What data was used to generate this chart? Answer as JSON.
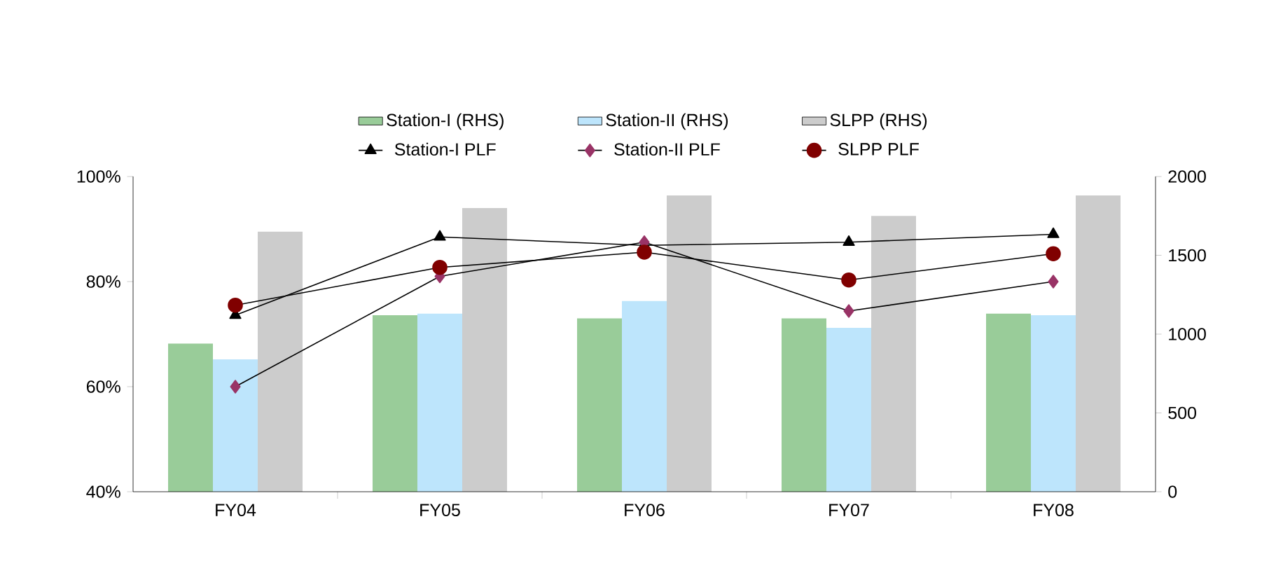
{
  "chart_data": {
    "type": "bar",
    "categories": [
      "FY04",
      "FY05",
      "FY06",
      "FY07",
      "FY08"
    ],
    "series": [
      {
        "name": "Station-I (RHS)",
        "axis": "y2",
        "color": "#99cc99",
        "values": [
          940,
          1120,
          1100,
          1100,
          1130
        ]
      },
      {
        "name": "Station-II (RHS)",
        "axis": "y2",
        "color": "#bde5fc",
        "values": [
          840,
          1130,
          1210,
          1040,
          1120
        ]
      },
      {
        "name": "SLPP (RHS)",
        "axis": "y2",
        "color": "#cccccc",
        "values": [
          1650,
          1800,
          1880,
          1750,
          1880
        ]
      },
      {
        "name": "Station-I PLF",
        "type": "line",
        "color": "#000000",
        "marker": "triangle",
        "values": [
          73.6,
          88.5,
          86.9,
          87.5,
          89
        ]
      },
      {
        "name": "Station-II PLF",
        "type": "line",
        "color": "#993366",
        "marker": "diamond",
        "values": [
          60,
          81,
          87.5,
          74.4,
          80
        ]
      },
      {
        "name": "SLPP PLF",
        "type": "line",
        "color": "#800000",
        "marker": "circle",
        "values": [
          75.5,
          82.7,
          85.6,
          80.3,
          85.3
        ]
      }
    ],
    "ylim": [
      40,
      100
    ],
    "yticks": [
      {
        "value": 40,
        "label": "40%"
      },
      {
        "value": 60,
        "label": "60%"
      },
      {
        "value": 80,
        "label": "80%"
      },
      {
        "value": 100,
        "label": "100%"
      }
    ],
    "y2lim": [
      0,
      2000
    ],
    "y2ticks": [
      0,
      500,
      1000,
      1500,
      2000
    ],
    "legend": "top",
    "line_style": "solid"
  }
}
